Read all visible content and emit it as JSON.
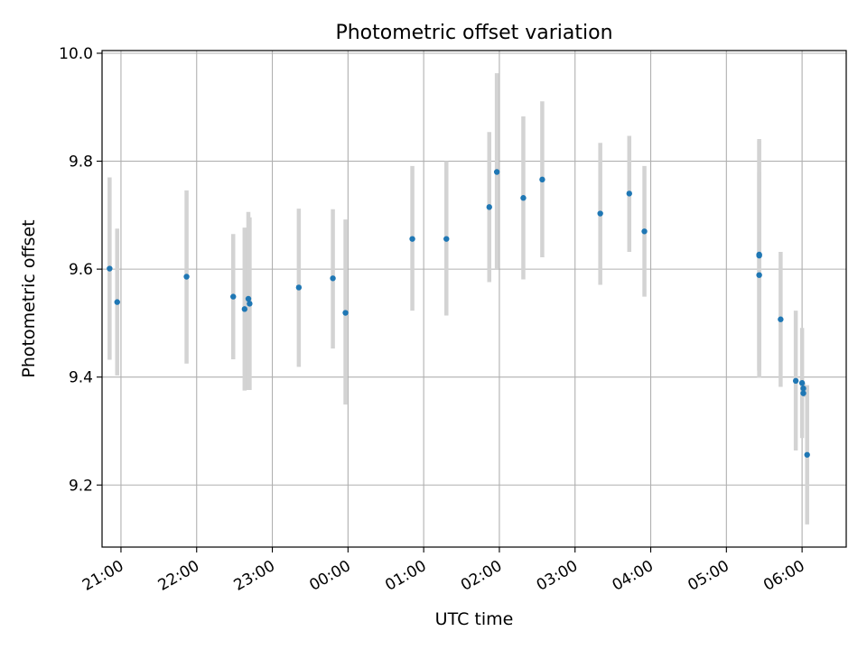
{
  "chart_data": {
    "type": "scatter",
    "title": "Photometric offset variation",
    "xlabel": "UTC time",
    "ylabel": "Photometric offset",
    "xlim": [
      "20:45",
      "06:35"
    ],
    "ylim": [
      9.085,
      10.005
    ],
    "x_ticks": [
      "21:00",
      "22:00",
      "23:00",
      "00:00",
      "01:00",
      "02:00",
      "03:00",
      "04:00",
      "05:00",
      "06:00"
    ],
    "y_ticks": [
      "9.2",
      "9.4",
      "9.6",
      "9.8",
      "10.0"
    ],
    "grid": true,
    "point_color": "#1f77b4",
    "errorbar_color": "#d3d3d3",
    "points": [
      {
        "t": "20:51",
        "y": 9.601,
        "lo": 9.432,
        "hi": 9.77
      },
      {
        "t": "20:57",
        "y": 9.539,
        "lo": 9.403,
        "hi": 9.675
      },
      {
        "t": "21:52",
        "y": 9.586,
        "lo": 9.425,
        "hi": 9.746
      },
      {
        "t": "22:29",
        "y": 9.549,
        "lo": 9.433,
        "hi": 9.665
      },
      {
        "t": "22:38",
        "y": 9.526,
        "lo": 9.375,
        "hi": 9.677
      },
      {
        "t": "22:41",
        "y": 9.545,
        "lo": 9.376,
        "hi": 9.706
      },
      {
        "t": "22:42",
        "y": 9.536,
        "lo": 9.376,
        "hi": 9.696
      },
      {
        "t": "23:21",
        "y": 9.566,
        "lo": 9.419,
        "hi": 9.712
      },
      {
        "t": "23:48",
        "y": 9.583,
        "lo": 9.453,
        "hi": 9.711
      },
      {
        "t": "23:58",
        "y": 9.519,
        "lo": 9.349,
        "hi": 9.692
      },
      {
        "t": "00:51",
        "y": 9.656,
        "lo": 9.523,
        "hi": 9.791
      },
      {
        "t": "01:18",
        "y": 9.656,
        "lo": 9.514,
        "hi": 9.8
      },
      {
        "t": "01:52",
        "y": 9.715,
        "lo": 9.576,
        "hi": 9.854
      },
      {
        "t": "01:58",
        "y": 9.78,
        "lo": 9.6,
        "hi": 9.963
      },
      {
        "t": "02:19",
        "y": 9.732,
        "lo": 9.581,
        "hi": 9.883
      },
      {
        "t": "02:34",
        "y": 9.766,
        "lo": 9.622,
        "hi": 9.911
      },
      {
        "t": "03:20",
        "y": 9.703,
        "lo": 9.571,
        "hi": 9.834
      },
      {
        "t": "03:43",
        "y": 9.74,
        "lo": 9.632,
        "hi": 9.847
      },
      {
        "t": "03:55",
        "y": 9.67,
        "lo": 9.549,
        "hi": 9.791
      },
      {
        "t": "05:26",
        "y": 9.627,
        "lo": 9.412,
        "hi": 9.841
      },
      {
        "t": "05:26",
        "y": 9.625,
        "lo": 9.412,
        "hi": 9.838
      },
      {
        "t": "05:26",
        "y": 9.589,
        "lo": 9.399,
        "hi": 9.779
      },
      {
        "t": "05:43",
        "y": 9.507,
        "lo": 9.382,
        "hi": 9.632
      },
      {
        "t": "05:55",
        "y": 9.393,
        "lo": 9.264,
        "hi": 9.523
      },
      {
        "t": "06:00",
        "y": 9.389,
        "lo": 9.287,
        "hi": 9.491
      },
      {
        "t": "06:01",
        "y": 9.379,
        "lo": 9.37,
        "hi": 9.388
      },
      {
        "t": "06:01",
        "y": 9.37,
        "lo": 9.363,
        "hi": 9.378
      },
      {
        "t": "06:04",
        "y": 9.256,
        "lo": 9.127,
        "hi": 9.385
      }
    ]
  }
}
